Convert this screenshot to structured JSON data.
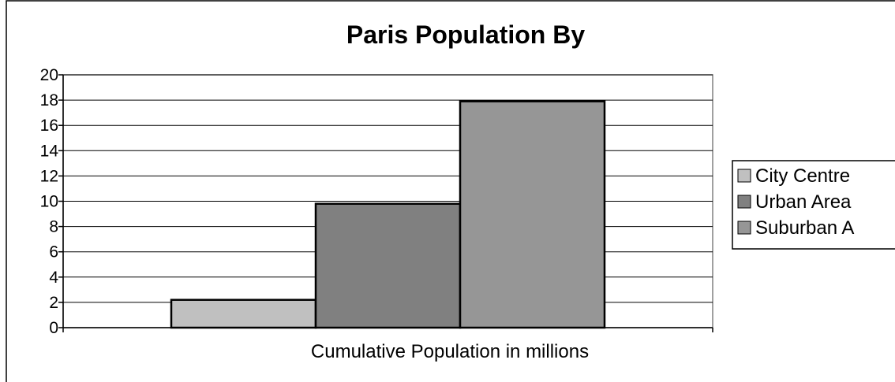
{
  "chart_data": {
    "type": "bar",
    "title": "Paris Population By",
    "xlabel": "Cumulative Population in millions",
    "ylabel": "",
    "categories": [
      "Cumulative Population in millions"
    ],
    "series": [
      {
        "name": "City Centre",
        "values": [
          2.2
        ],
        "color": "#c0c0c0"
      },
      {
        "name": "Urban Area",
        "values": [
          9.8
        ],
        "color": "#808080"
      },
      {
        "name": "Suburban A",
        "values": [
          17.9
        ],
        "color": "#969696"
      }
    ],
    "ylim": [
      0,
      20
    ],
    "yticks": [
      0,
      2,
      4,
      6,
      8,
      10,
      12,
      14,
      16,
      18,
      20
    ],
    "grid": true,
    "legend_position": "right"
  }
}
